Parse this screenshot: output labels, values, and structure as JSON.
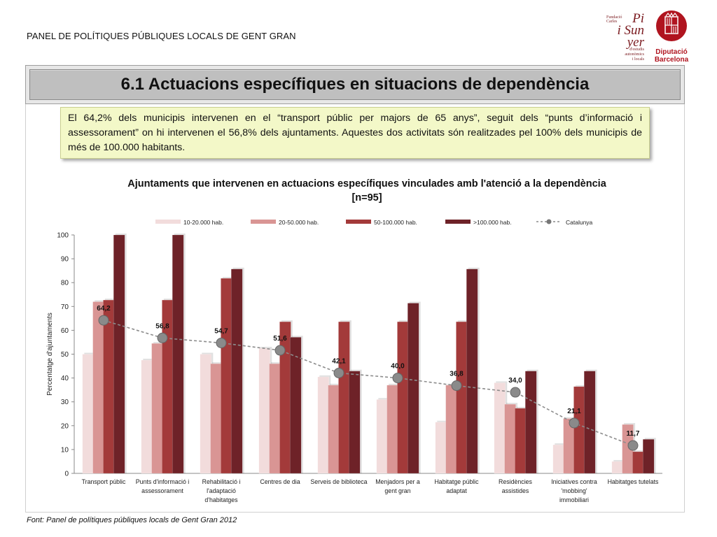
{
  "header": {
    "panel_title": "PANEL DE POLÍTIQUES PÚBLIQUES LOCALS DE GENT GRAN",
    "logo_pi": {
      "line1": "Fundació",
      "line2": "Carles",
      "big1": "Pi",
      "big2": "i Sun",
      "big3": "yer",
      "sub1": "d'estudis",
      "sub2": "autonòmics",
      "sub3": "i locals"
    },
    "logo_dipu": {
      "line1": "Diputació",
      "line2": "Barcelona"
    }
  },
  "section_title": "6.1 Actuacions específiques en situacions de dependència",
  "summary": "El 64,2% dels municipis intervenen en el “transport públic per majors de 65 anys”, seguit dels “punts d’informació i assessorament” on hi intervenen el 56,8% dels ajuntaments. Aquestes dos activitats són realitzades pel 100% dels municipis de més de 100.000 habitants.",
  "footer": "Font: Panel de  polítiques públiques locals de Gent Gran 2012",
  "colors": {
    "s1": "#f2dcdc",
    "s2": "#d99594",
    "s3": "#a33a3a",
    "s4": "#6e2228",
    "line": "#8c8c8c",
    "summary_bg": "#f3f8c8",
    "title_bg": "#bfbfbf"
  },
  "chart_data": {
    "type": "bar",
    "title": "Ajuntaments que intervenen en actuacions específiques vinculades amb l'atenció a la dependència",
    "subtitle": "[n=95]",
    "ylabel": "Percentatge d'ajuntaments",
    "xlabel": "",
    "ylim": [
      0,
      100
    ],
    "yticks": [
      0,
      10,
      20,
      30,
      40,
      50,
      60,
      70,
      80,
      90,
      100
    ],
    "grid": false,
    "legend_position": "top",
    "categories": [
      [
        "Transport públic"
      ],
      [
        "Punts d'informació i",
        "assessorament"
      ],
      [
        "Rehabilitació i",
        "l'adaptació",
        "d'habitatges"
      ],
      [
        "Centres de dia"
      ],
      [
        "Serveis de biblioteca"
      ],
      [
        "Menjadors per a",
        "gent gran"
      ],
      [
        "Habitatge públic",
        "adaptat"
      ],
      [
        "Residències",
        "assistides"
      ],
      [
        "Iniciatives contra",
        "'mobbing'",
        "immobiliari"
      ],
      [
        "Habitatges tutelats"
      ]
    ],
    "series": [
      {
        "name": "10-20.000 hab.",
        "values": [
          50,
          47.5,
          50,
          52.5,
          40.5,
          31,
          21.5,
          38,
          12,
          5
        ]
      },
      {
        "name": "20-50.000 hab.",
        "values": [
          72,
          54.5,
          46,
          46,
          37,
          37,
          37,
          29,
          23,
          20.5
        ]
      },
      {
        "name": "50-100.000 hab.",
        "values": [
          72.7,
          72.7,
          81.8,
          63.6,
          63.6,
          63.6,
          63.6,
          27.3,
          36.4,
          9.1
        ]
      },
      {
        "name": ">100.000 hab.",
        "values": [
          100,
          100,
          85.7,
          57.1,
          42.9,
          71.4,
          85.7,
          42.9,
          42.9,
          14.3
        ]
      }
    ],
    "line_series": {
      "name": "Catalunya",
      "values": [
        64.2,
        56.8,
        54.7,
        51.6,
        42.1,
        40.0,
        36.8,
        34.0,
        21.1,
        11.7
      ],
      "labels": [
        "64,2",
        "56,8",
        "54,7",
        "51,6",
        "42,1",
        "40,0",
        "36,8",
        "34,0",
        "21,1",
        "11,7"
      ]
    }
  }
}
